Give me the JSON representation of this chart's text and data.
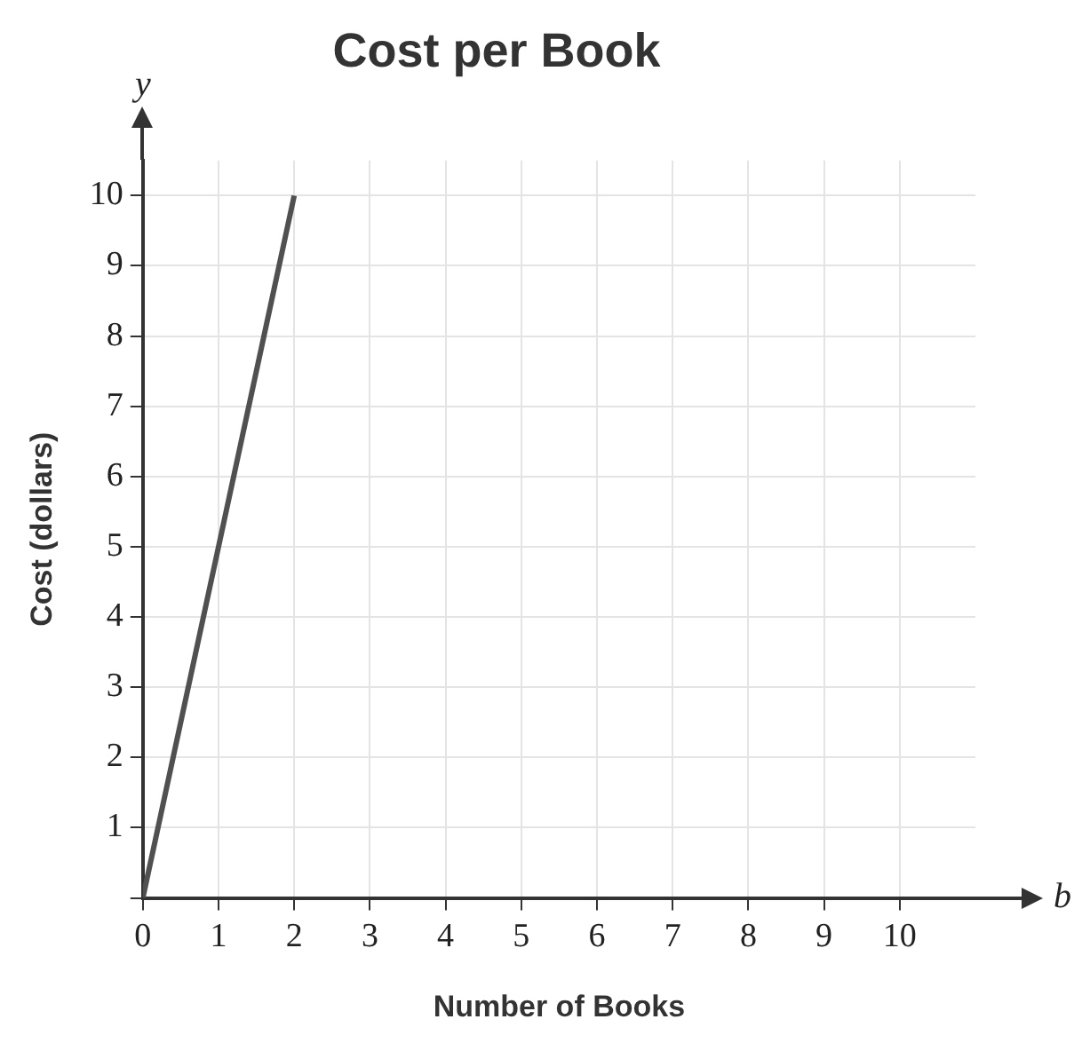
{
  "chart_data": {
    "type": "line",
    "title": "Cost per Book",
    "xlabel": "Number of Books",
    "ylabel": "Cost (dollars)",
    "annotations": [
      "y",
      "b"
    ],
    "x": [
      0,
      2
    ],
    "series": [
      {
        "color": "#505050",
        "values": [
          0,
          10
        ]
      }
    ],
    "xlim": [
      0,
      11
    ],
    "ylim": [
      0,
      10.5
    ],
    "xticks": [
      0,
      1,
      2,
      3,
      4,
      5,
      6,
      7,
      8,
      9,
      10
    ],
    "yticks": [
      {
        "value": 0,
        "label": null
      },
      1,
      2,
      3,
      4,
      5,
      6,
      7,
      8,
      9,
      10
    ],
    "grid": true,
    "legend": false,
    "marker": "none",
    "line_style": "solid"
  }
}
